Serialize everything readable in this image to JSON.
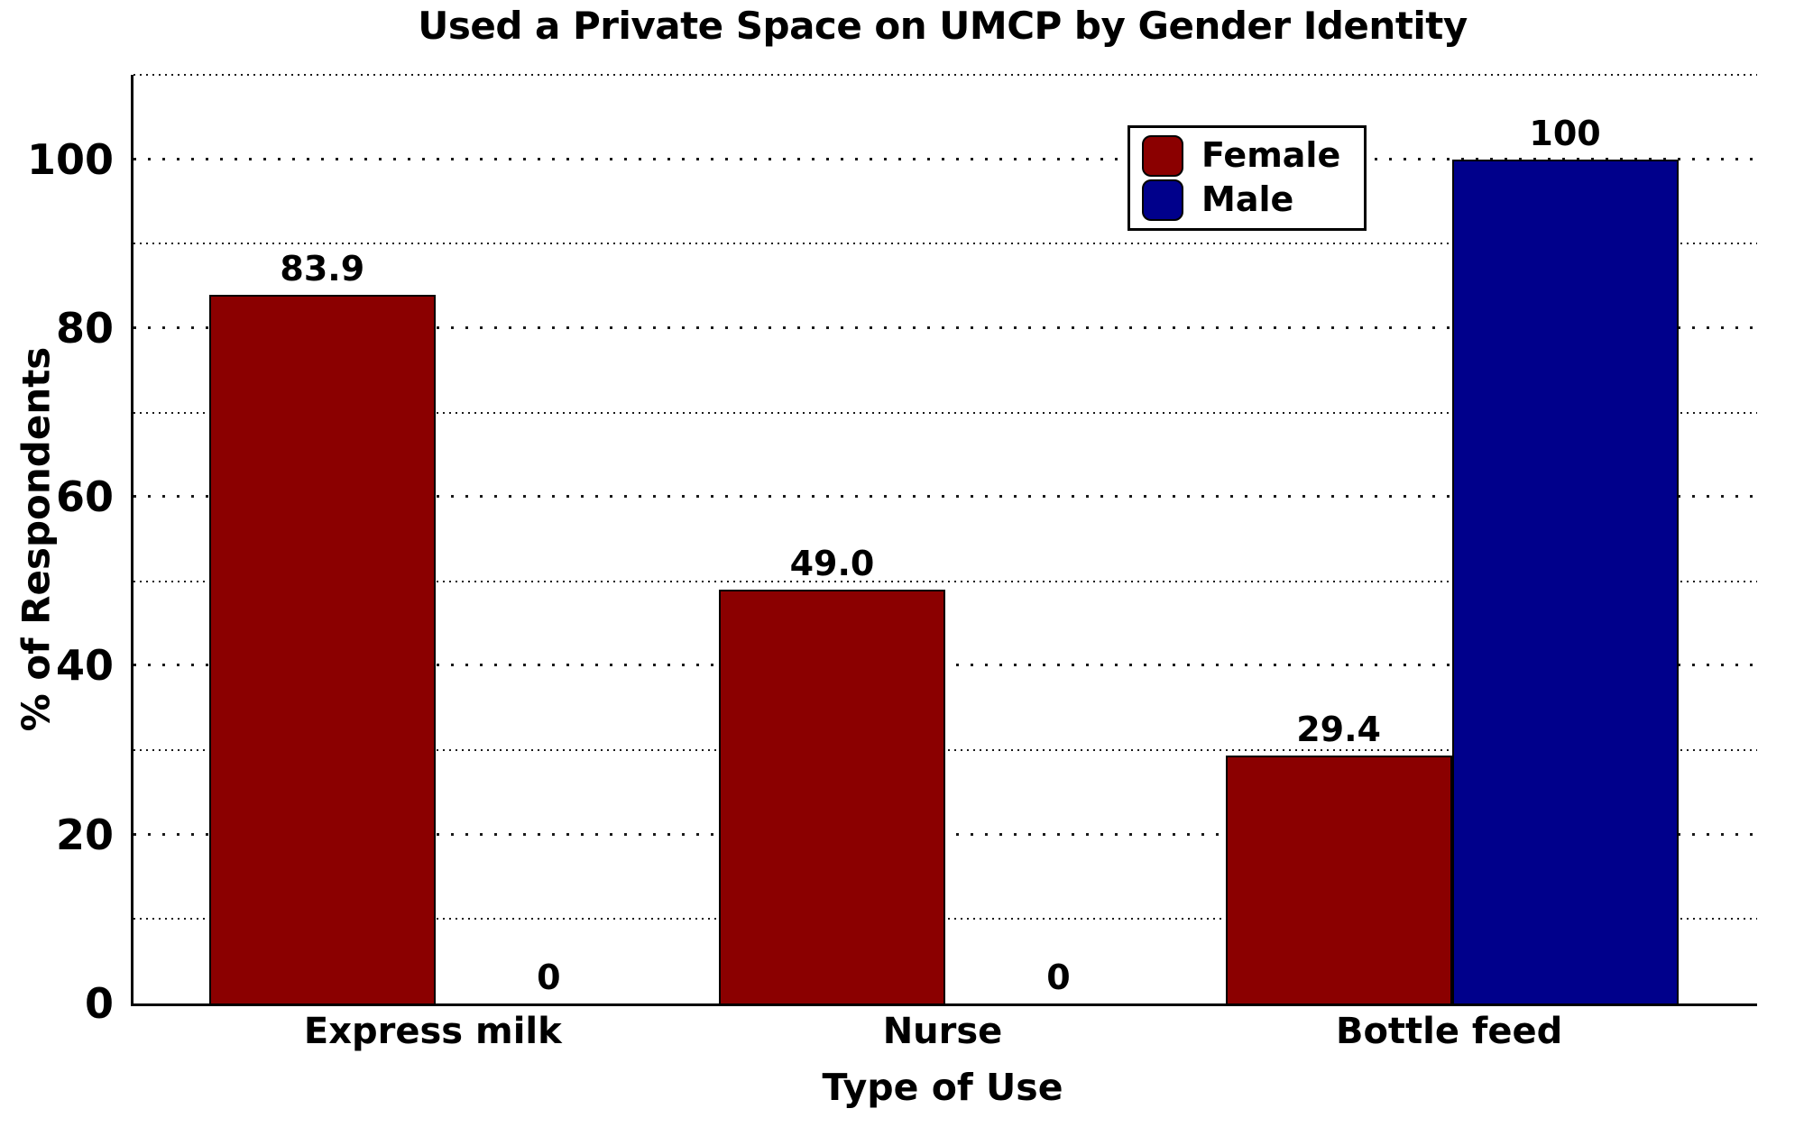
{
  "chart_data": {
    "type": "bar",
    "title": "Used a Private Space on UMCP by Gender Identity",
    "xlabel": "Type of Use",
    "ylabel": "% of Respondents",
    "categories": [
      "Express milk",
      "Nurse",
      "Bottle feed"
    ],
    "series": [
      {
        "name": "Female",
        "color": "#8B0000",
        "values": [
          83.9,
          49.0,
          29.4
        ],
        "value_labels": [
          "83.9",
          "49.0",
          "29.4"
        ]
      },
      {
        "name": "Male",
        "color": "#00008B",
        "values": [
          0,
          0,
          100
        ],
        "value_labels": [
          "0",
          "0",
          "100"
        ]
      }
    ],
    "ylim": [
      0,
      110
    ],
    "yticks": [
      0,
      20,
      40,
      60,
      80,
      100
    ],
    "grid": {
      "which": "both",
      "step": 10,
      "style": "dotted",
      "orientation": "horizontal"
    },
    "legend": {
      "position": "upper right",
      "background": "#FFFFFF",
      "border_color": "#000000"
    },
    "bar_edge_color": "#000000",
    "axis_color": "#000000"
  }
}
